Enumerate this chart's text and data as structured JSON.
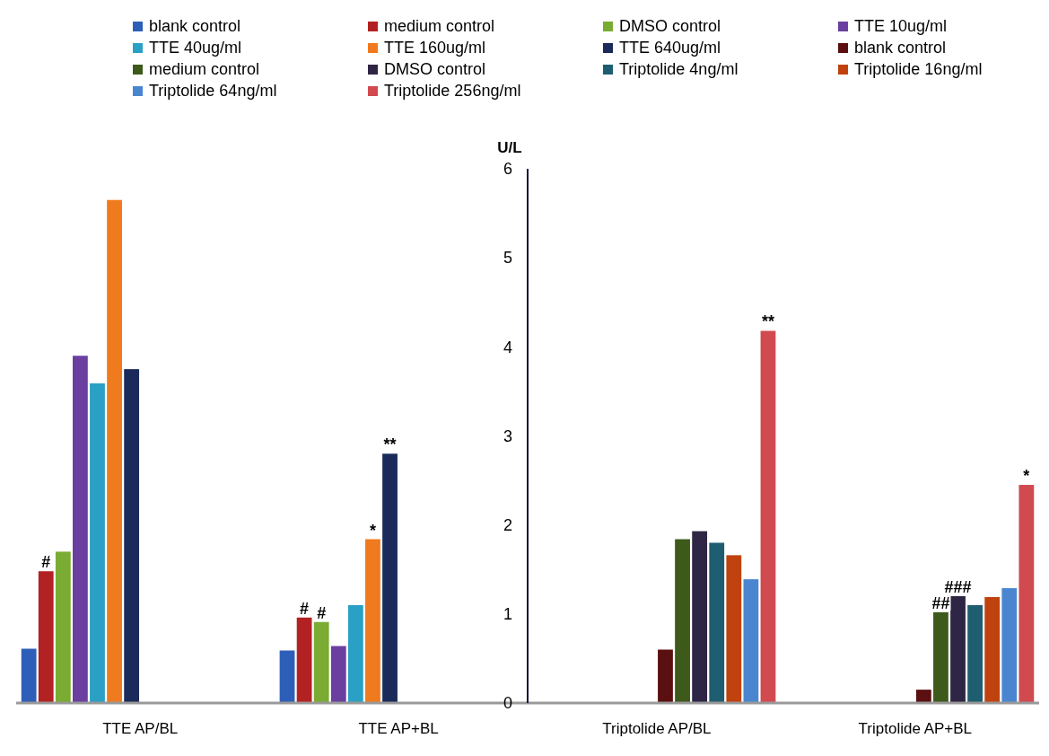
{
  "chart_data": {
    "type": "bar",
    "ylabel": "U/L",
    "categories": [
      "TTE AP/BL",
      "TTE AP+BL",
      "Triptolide AP/BL",
      "Triptolide AP+BL"
    ],
    "series": [
      {
        "name": "blank control",
        "color": "#2e5fb8",
        "values": [
          0.61,
          0.59,
          null,
          null
        ]
      },
      {
        "name": "medium control",
        "color": "#b22222",
        "values": [
          1.48,
          0.96,
          null,
          null
        ],
        "value_labels": [
          "#",
          "#",
          null,
          null
        ]
      },
      {
        "name": "DMSO control",
        "color": "#7aab32",
        "values": [
          1.7,
          0.91,
          null,
          null
        ],
        "value_labels": [
          null,
          "#",
          null,
          null
        ]
      },
      {
        "name": "TTE 10ug/ml",
        "color": "#6b3fa0",
        "values": [
          3.9,
          0.64,
          null,
          null
        ]
      },
      {
        "name": "TTE 40ug/ml",
        "color": "#2aa0c4",
        "values": [
          3.59,
          1.1,
          null,
          null
        ]
      },
      {
        "name": "TTE 160ug/ml",
        "color": "#f07a1e",
        "values": [
          5.65,
          1.84,
          null,
          null
        ],
        "value_labels": [
          null,
          "*",
          null,
          null
        ]
      },
      {
        "name": "TTE 640ug/ml",
        "color": "#1a2a5a",
        "values": [
          3.75,
          2.8,
          null,
          null
        ],
        "value_labels": [
          null,
          "**",
          null,
          null
        ]
      },
      {
        "name": "blank control",
        "color": "#5a1010",
        "values": [
          null,
          null,
          0.6,
          0.15
        ]
      },
      {
        "name": "medium control",
        "color": "#3d5a1a",
        "values": [
          null,
          null,
          1.84,
          1.02
        ],
        "value_labels": [
          null,
          null,
          null,
          "##"
        ]
      },
      {
        "name": "DMSO control",
        "color": "#2f2545",
        "values": [
          null,
          null,
          1.93,
          1.2
        ],
        "value_labels": [
          null,
          null,
          null,
          "###"
        ]
      },
      {
        "name": "Triptolide 4ng/ml",
        "color": "#1f5d70",
        "values": [
          null,
          null,
          1.8,
          1.1
        ]
      },
      {
        "name": "Triptolide 16ng/ml",
        "color": "#c0420e",
        "values": [
          null,
          null,
          1.66,
          1.19
        ]
      },
      {
        "name": "Triptolide 64ng/ml",
        "color": "#4a86d0",
        "values": [
          null,
          null,
          1.39,
          1.29
        ]
      },
      {
        "name": "Triptolide 256ng/ml",
        "color": "#d04a50",
        "values": [
          null,
          null,
          4.18,
          2.45
        ],
        "value_labels": [
          null,
          null,
          "**",
          "*"
        ]
      }
    ],
    "ylim": [
      0,
      6
    ],
    "yticks": [
      0,
      1,
      2,
      3,
      4,
      5,
      6
    ],
    "legend": "top",
    "grid": false
  }
}
